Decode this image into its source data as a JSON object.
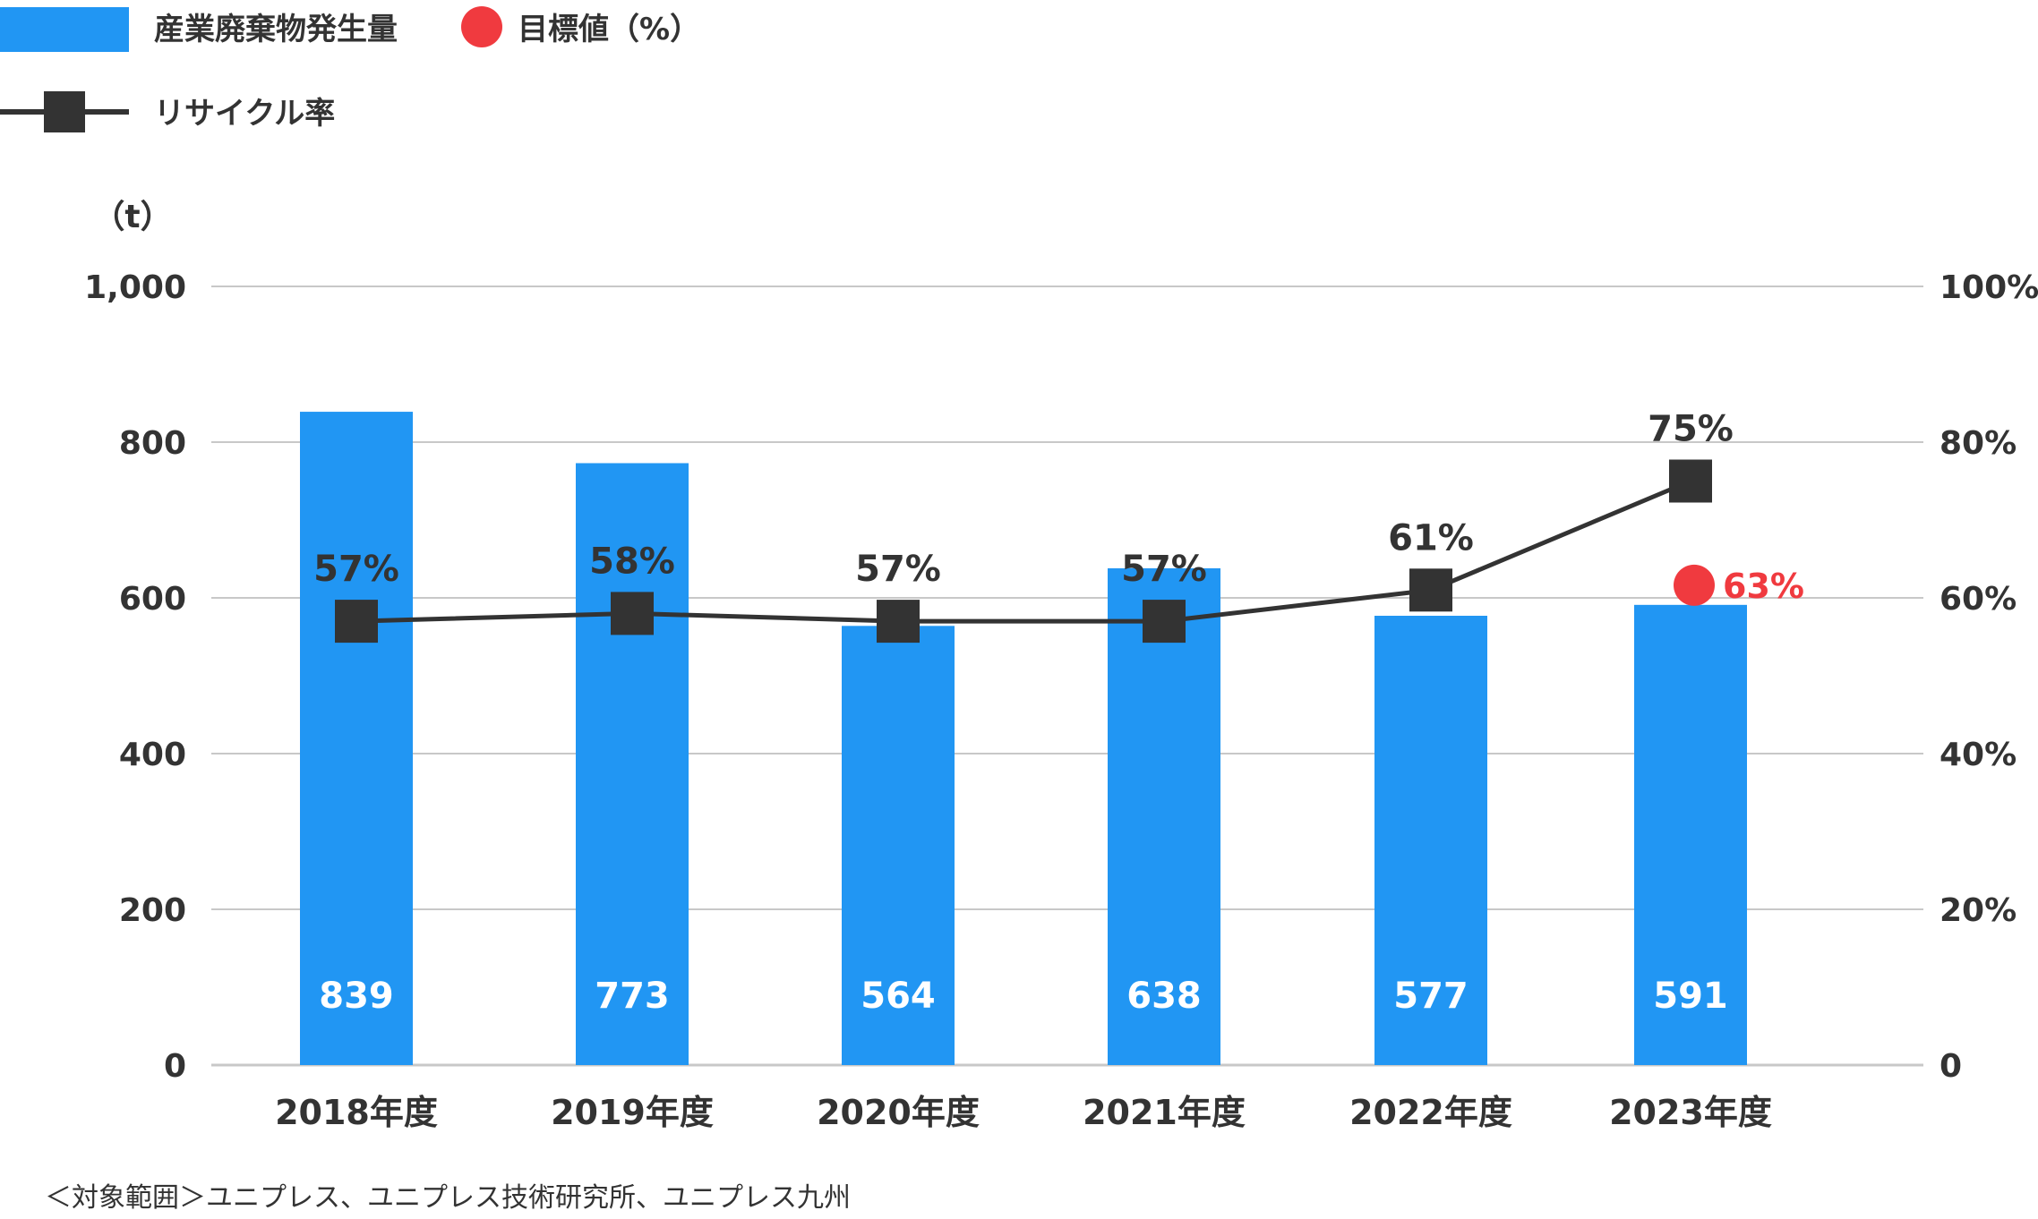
{
  "legend": {
    "bars_label": "産業廃棄物発生量",
    "target_label": "目標値（%）",
    "line_label": "リサイクル率"
  },
  "colors": {
    "bar": "#2196F3",
    "line": "#333333",
    "marker": "#333333",
    "target": "#F03A3F",
    "grid": "#c8c8c8"
  },
  "footnote": "＜対象範囲＞ユニプレス、ユニプレス技術研究所、ユニプレス九州",
  "chart_data": {
    "type": "bar",
    "categories": [
      "2018年度",
      "2019年度",
      "2020年度",
      "2021年度",
      "2022年度",
      "2023年度"
    ],
    "left_axis": {
      "unit_label": "（t）",
      "ylim": [
        0,
        1000
      ],
      "ticks": [
        0,
        200,
        400,
        600,
        800,
        1000
      ],
      "tick_labels": [
        "0",
        "200",
        "400",
        "600",
        "800",
        "1,000"
      ]
    },
    "right_axis": {
      "ylim": [
        0,
        100
      ],
      "ticks": [
        0,
        20,
        40,
        60,
        80,
        100
      ],
      "tick_labels": [
        "0",
        "20%",
        "40%",
        "60%",
        "80%",
        "100%"
      ]
    },
    "series": [
      {
        "name": "産業廃棄物発生量",
        "type": "bar",
        "axis": "left",
        "values": [
          839,
          773,
          564,
          638,
          577,
          591
        ],
        "labels": [
          "839",
          "773",
          "564",
          "638",
          "577",
          "591"
        ]
      },
      {
        "name": "リサイクル率",
        "type": "line",
        "axis": "right",
        "values": [
          57,
          58,
          57,
          57,
          61,
          75
        ],
        "labels": [
          "57%",
          "58%",
          "57%",
          "57%",
          "61%",
          "75%"
        ]
      },
      {
        "name": "目標値（%）",
        "type": "scatter",
        "axis": "right",
        "points": [
          {
            "category": "2023年度",
            "value": 63,
            "label": "63%"
          }
        ]
      }
    ],
    "grid": true,
    "legend_position": "top-left"
  }
}
